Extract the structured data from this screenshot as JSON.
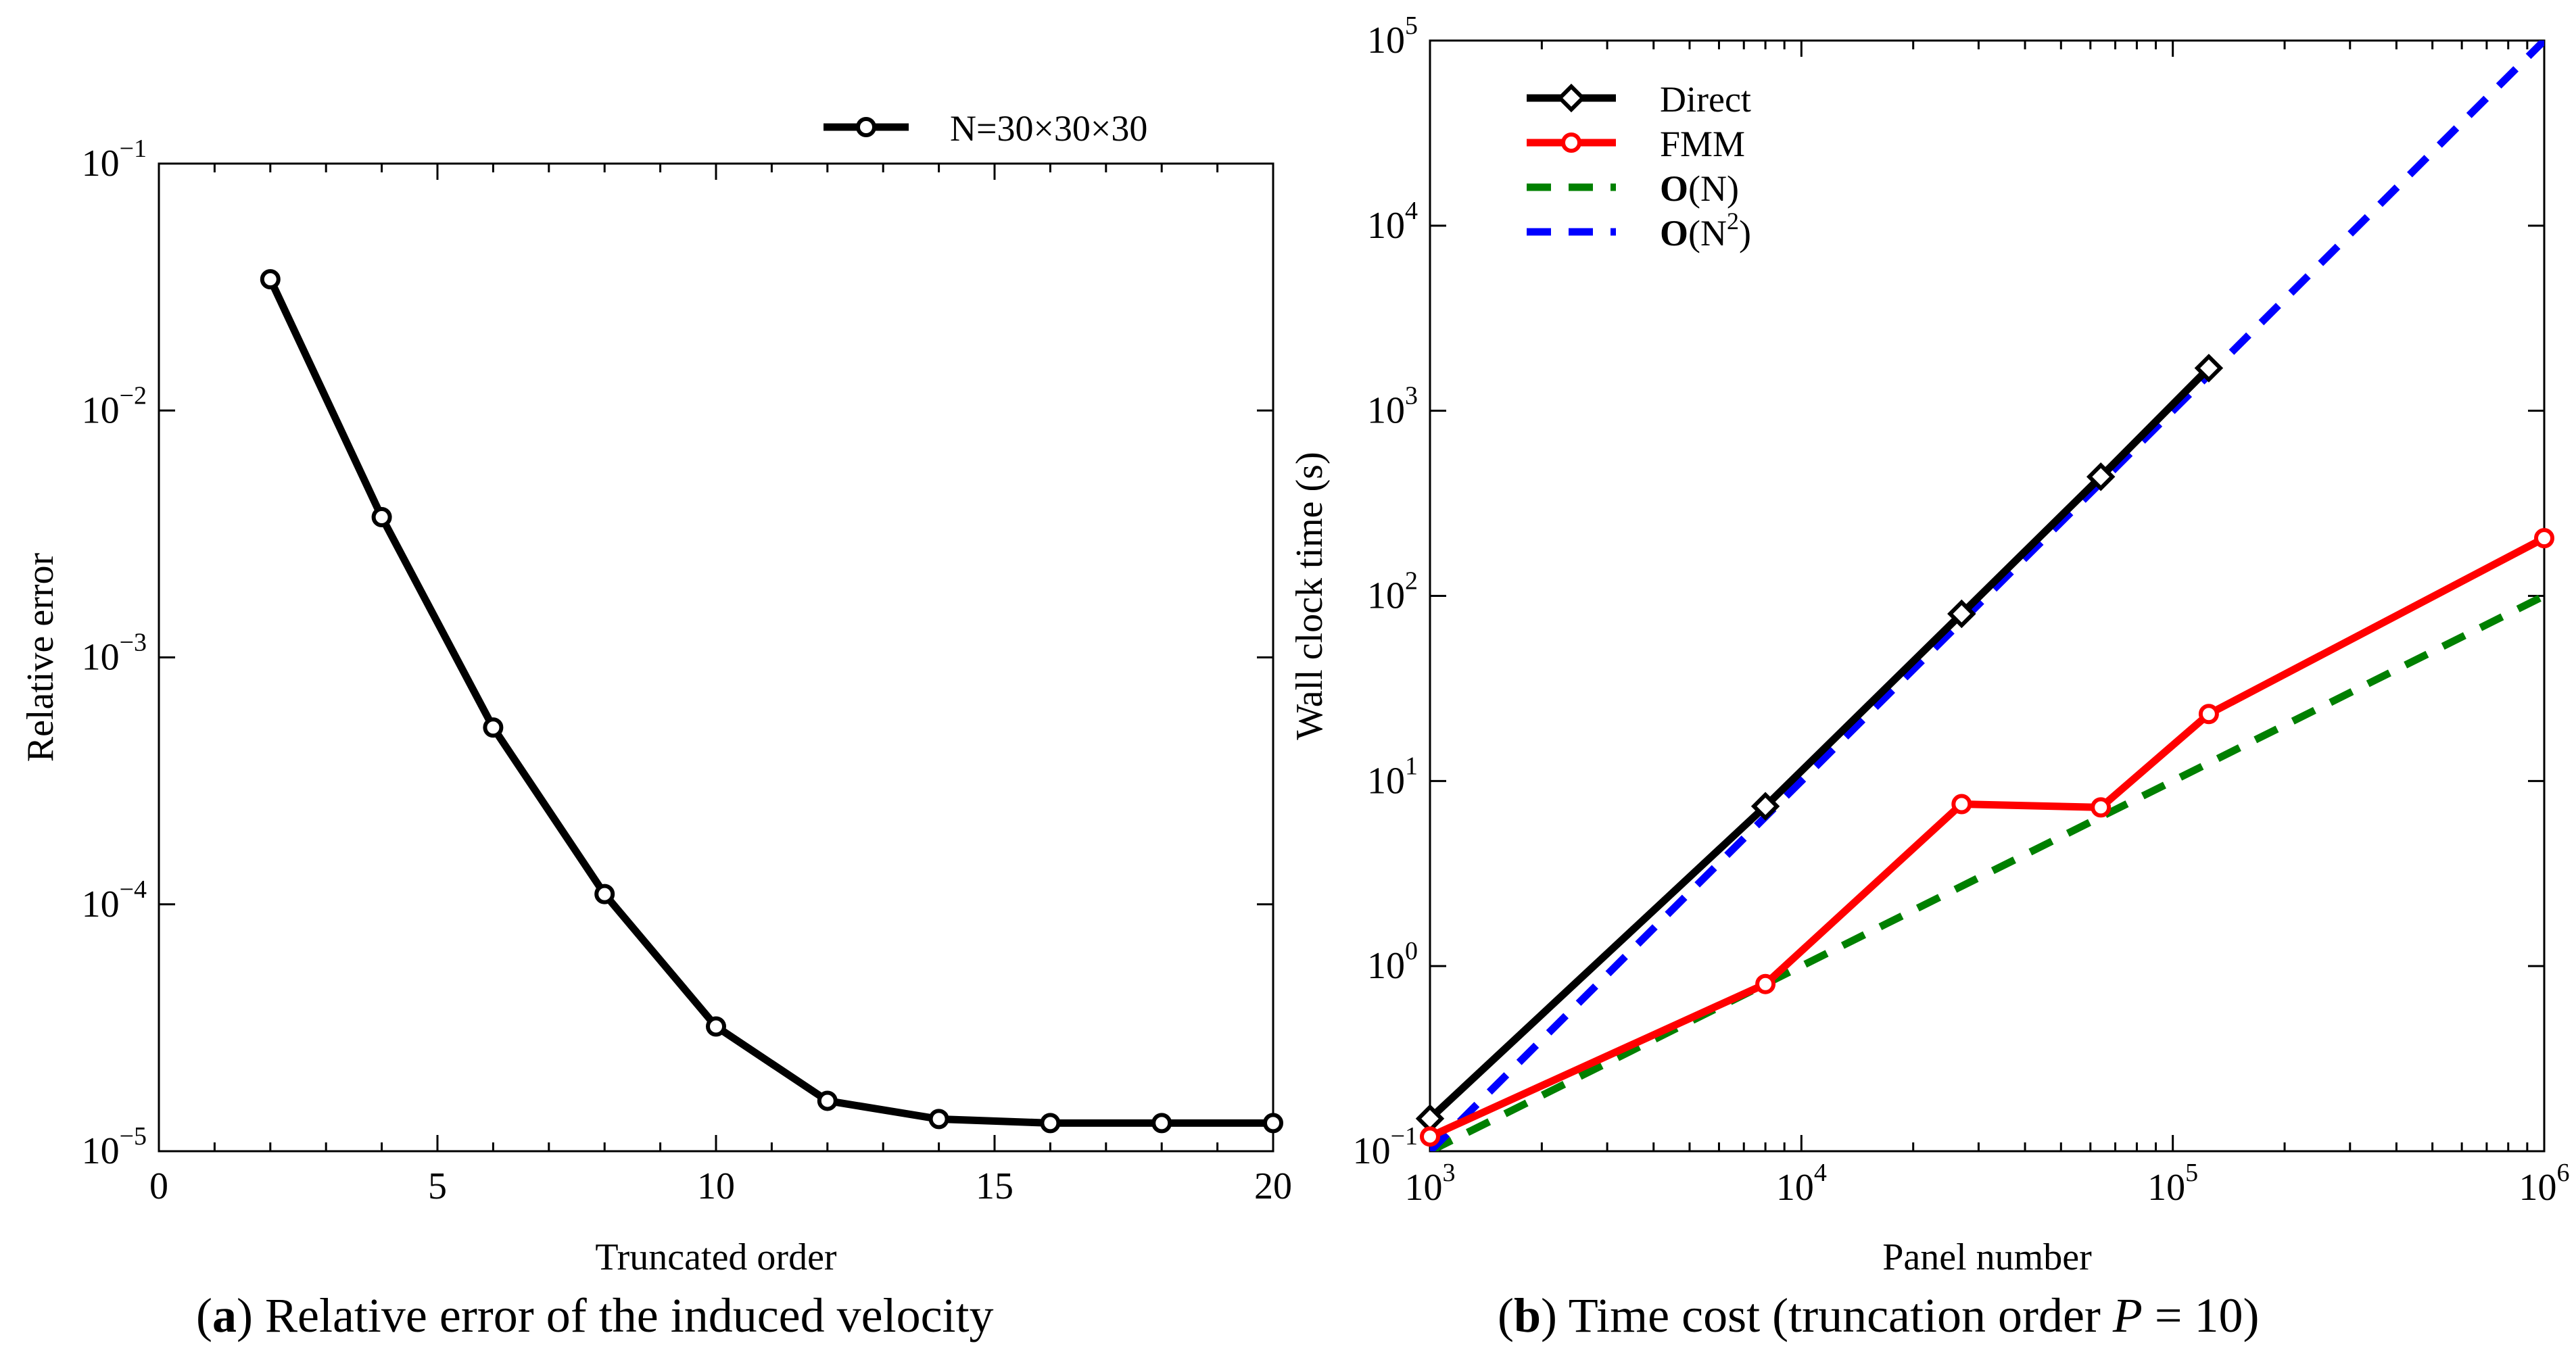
{
  "chart_data": [
    {
      "type": "line",
      "panel": "a",
      "xlabel": "Truncated order",
      "ylabel": "Relative error",
      "xscale": "linear",
      "yscale": "log",
      "xlim": [
        0,
        20
      ],
      "ylim": [
        1e-05,
        0.1
      ],
      "xticks": [
        0,
        5,
        10,
        15,
        20
      ],
      "yticks": [
        {
          "base": "10",
          "exp": "−5",
          "value": 1e-05
        },
        {
          "base": "10",
          "exp": "−4",
          "value": 0.0001
        },
        {
          "base": "10",
          "exp": "−3",
          "value": 0.001
        },
        {
          "base": "10",
          "exp": "−2",
          "value": 0.01
        },
        {
          "base": "10",
          "exp": "−1",
          "value": 0.1
        }
      ],
      "legend_position": "top-right",
      "series": [
        {
          "name": "N=30×30×30",
          "color": "#000000",
          "marker": "circle",
          "x": [
            2,
            4,
            6,
            8,
            10,
            12,
            14,
            16,
            18,
            20
          ],
          "y": [
            0.034,
            0.0037,
            0.00052,
            0.00011,
            3.2e-05,
            1.6e-05,
            1.35e-05,
            1.3e-05,
            1.3e-05,
            1.3e-05
          ]
        }
      ],
      "caption": {
        "letter": "a",
        "text": " Relative error of the induced velocity"
      }
    },
    {
      "type": "line",
      "panel": "b",
      "xlabel": "Panel number",
      "ylabel": "Wall clock time (s)",
      "xscale": "log",
      "yscale": "log",
      "xlim": [
        1000,
        1000000
      ],
      "ylim": [
        0.1,
        100000
      ],
      "xticks": [
        {
          "base": "10",
          "exp": "3",
          "value": 1000
        },
        {
          "base": "10",
          "exp": "4",
          "value": 10000
        },
        {
          "base": "10",
          "exp": "5",
          "value": 100000
        },
        {
          "base": "10",
          "exp": "6",
          "value": 1000000
        }
      ],
      "yticks": [
        {
          "base": "10",
          "exp": "−1",
          "value": 0.1
        },
        {
          "base": "10",
          "exp": "0",
          "value": 1
        },
        {
          "base": "10",
          "exp": "1",
          "value": 10
        },
        {
          "base": "10",
          "exp": "2",
          "value": 100
        },
        {
          "base": "10",
          "exp": "3",
          "value": 1000
        },
        {
          "base": "10",
          "exp": "4",
          "value": 10000
        },
        {
          "base": "10",
          "exp": "5",
          "value": 100000
        }
      ],
      "legend_position": "top-left",
      "series": [
        {
          "name": "Direct",
          "color": "#000000",
          "marker": "diamond",
          "dash": "solid",
          "x": [
            1000,
            8000,
            27000,
            64000,
            125000
          ],
          "y": [
            0.15,
            7.3,
            80,
            440,
            1700
          ]
        },
        {
          "name": "FMM",
          "color": "#ff0000",
          "marker": "circle",
          "dash": "solid",
          "x": [
            1000,
            8000,
            27000,
            64000,
            125000,
            1000000
          ],
          "y": [
            0.12,
            0.8,
            7.5,
            7.2,
            23,
            205
          ]
        },
        {
          "name": "O(N)",
          "label_main": "O",
          "label_rest": "(N)",
          "label_sup": "",
          "label_tail": "",
          "color": "#008000",
          "marker": "none",
          "dash": "dashed",
          "x": [
            1000,
            1000000
          ],
          "y": [
            0.1,
            100
          ]
        },
        {
          "name": "O(N^2)",
          "label_main": "O",
          "label_rest": "(N",
          "label_sup": "2",
          "label_tail": ")",
          "color": "#0000ff",
          "marker": "none",
          "dash": "dashed",
          "x": [
            1000,
            1000000
          ],
          "y": [
            0.1,
            100000
          ]
        }
      ],
      "caption": {
        "letter": "b",
        "text": " Time cost (truncation order ",
        "var": "P",
        "eq": " = 10)"
      }
    }
  ]
}
